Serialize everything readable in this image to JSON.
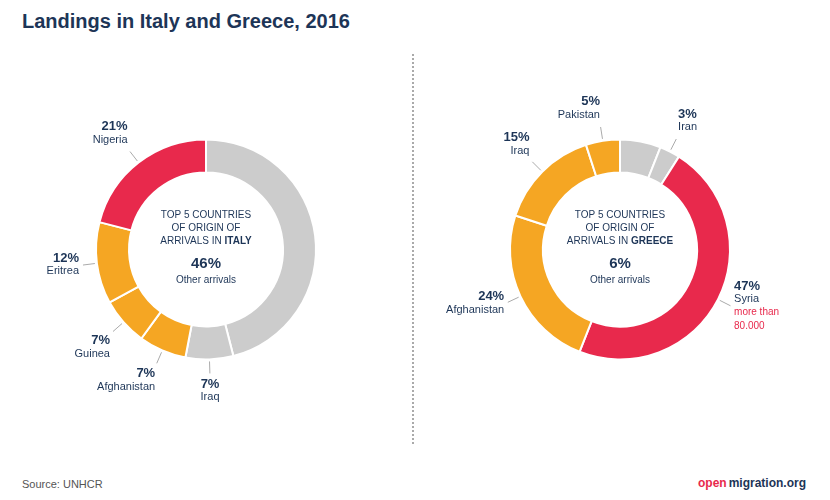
{
  "title": "Landings in Italy and Greece, 2016",
  "source": "Source: UNHCR",
  "logo": [
    "open",
    "migration.org"
  ],
  "chart_data": [
    {
      "type": "doughnut",
      "center_text": [
        "TOP 5 COUNTRIES",
        "OF ORIGIN OF",
        "ARRIVALS IN"
      ],
      "center_title": "ITALY",
      "categories": [
        "Other arrivals",
        "Iraq",
        "Afghanistan",
        "Guinea",
        "Eritrea",
        "Nigeria"
      ],
      "values": [
        46,
        7,
        7,
        7,
        12,
        21
      ],
      "value_labels": [
        "46%",
        "7%",
        "7%",
        "7%",
        "12%",
        "21%"
      ],
      "colors": [
        "#cccccc",
        "#cccccc",
        "#f5a623",
        "#f5a623",
        "#f5a623",
        "#e8294c"
      ],
      "data_labels": true
    },
    {
      "type": "doughnut",
      "center_text": [
        "TOP 5 COUNTRIES",
        "OF ORIGIN OF",
        "ARRIVALS IN"
      ],
      "center_title": "GREECE",
      "categories": [
        "Other arrivals",
        "Iran",
        "Syria",
        "Afghanistan",
        "Iraq",
        "Pakistan"
      ],
      "values": [
        6,
        3,
        47,
        24,
        15,
        5
      ],
      "value_labels": [
        "6%",
        "3%",
        "47%",
        "24%",
        "15%",
        "5%"
      ],
      "colors": [
        "#cccccc",
        "#cccccc",
        "#e8294c",
        "#f5a623",
        "#f5a623",
        "#f5a623"
      ],
      "data_labels": true,
      "annotations": [
        {
          "category": "Syria",
          "text": [
            "more than",
            "80.000"
          ],
          "color": "#e8294c"
        }
      ]
    }
  ]
}
